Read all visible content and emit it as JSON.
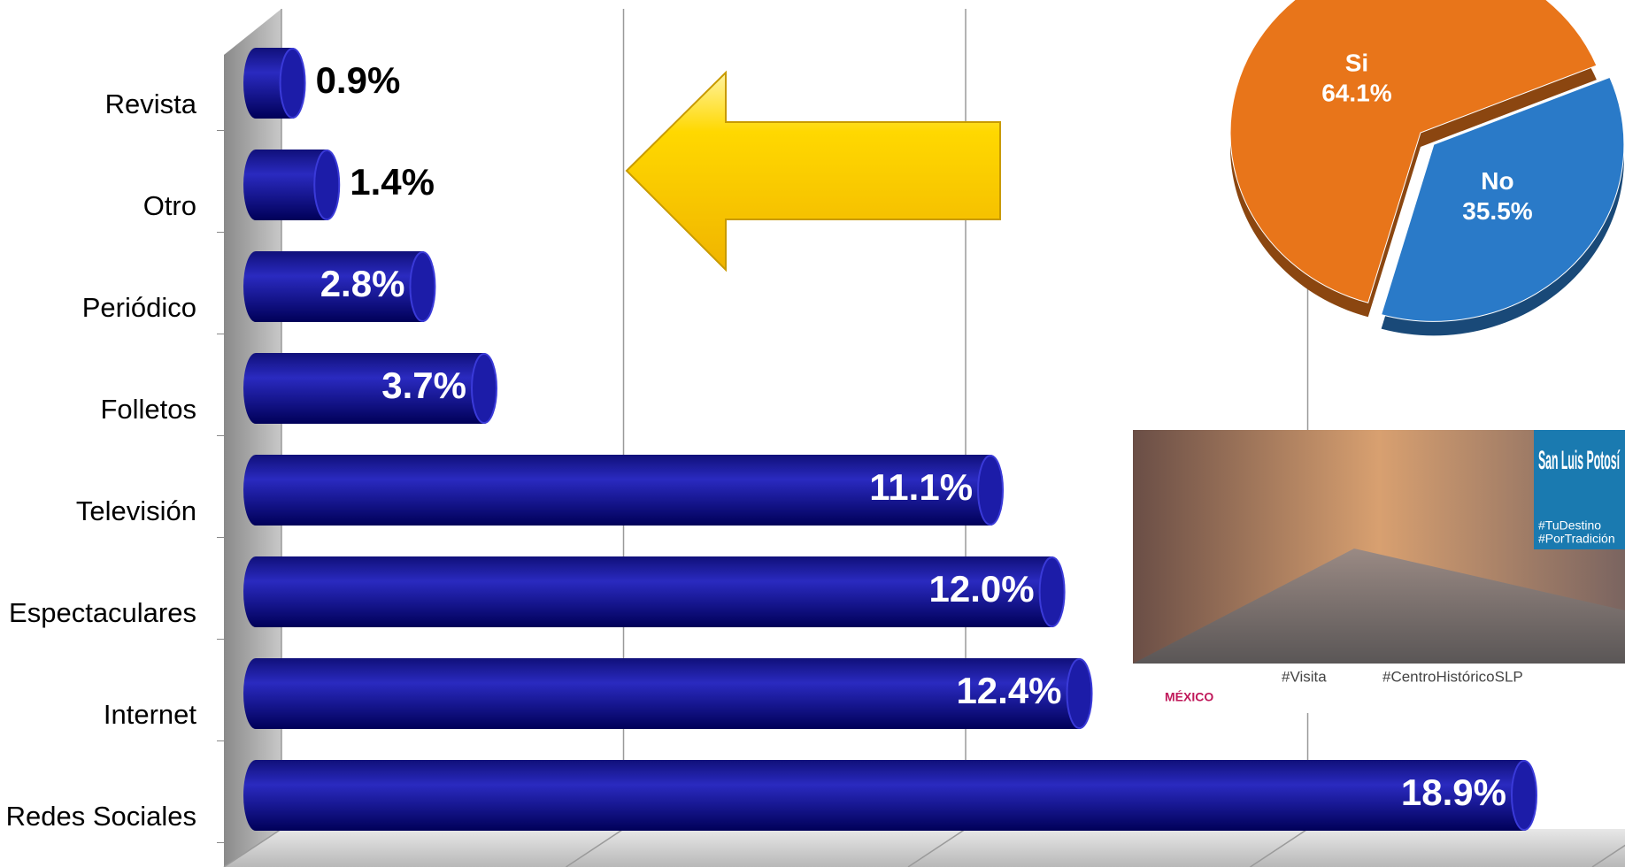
{
  "chart_data": [
    {
      "type": "bar",
      "categories": [
        "Revista",
        "Otro",
        "Periódico",
        "Folletos",
        "Televisión",
        "Espectaculares",
        "Internet",
        "Redes Sociales"
      ],
      "values": [
        0.9,
        1.4,
        2.8,
        3.7,
        11.1,
        12.0,
        12.4,
        18.9
      ],
      "value_labels": [
        "0.9%",
        "1.4%",
        "2.8%",
        "3.7%",
        "11.1%",
        "12.0%",
        "12.4%",
        "18.9%"
      ],
      "color": "#1a1aa0",
      "xlim": [
        0,
        20
      ],
      "xticks": [
        0,
        5,
        10,
        15,
        20
      ],
      "grid": true
    },
    {
      "type": "pie",
      "categories": [
        "Si",
        "No"
      ],
      "values": [
        64.1,
        35.5
      ],
      "value_labels": [
        "64.1%",
        "35.5%"
      ],
      "colors": [
        "#e8751a",
        "#2a7ac8"
      ]
    }
  ],
  "banner": {
    "title": "San Luis Potosí",
    "tags": [
      "#TuDestino",
      "#PorTradición"
    ],
    "footer": [
      "MÉXICO",
      "#Visita",
      "#CentroHistóricoSLP"
    ]
  }
}
